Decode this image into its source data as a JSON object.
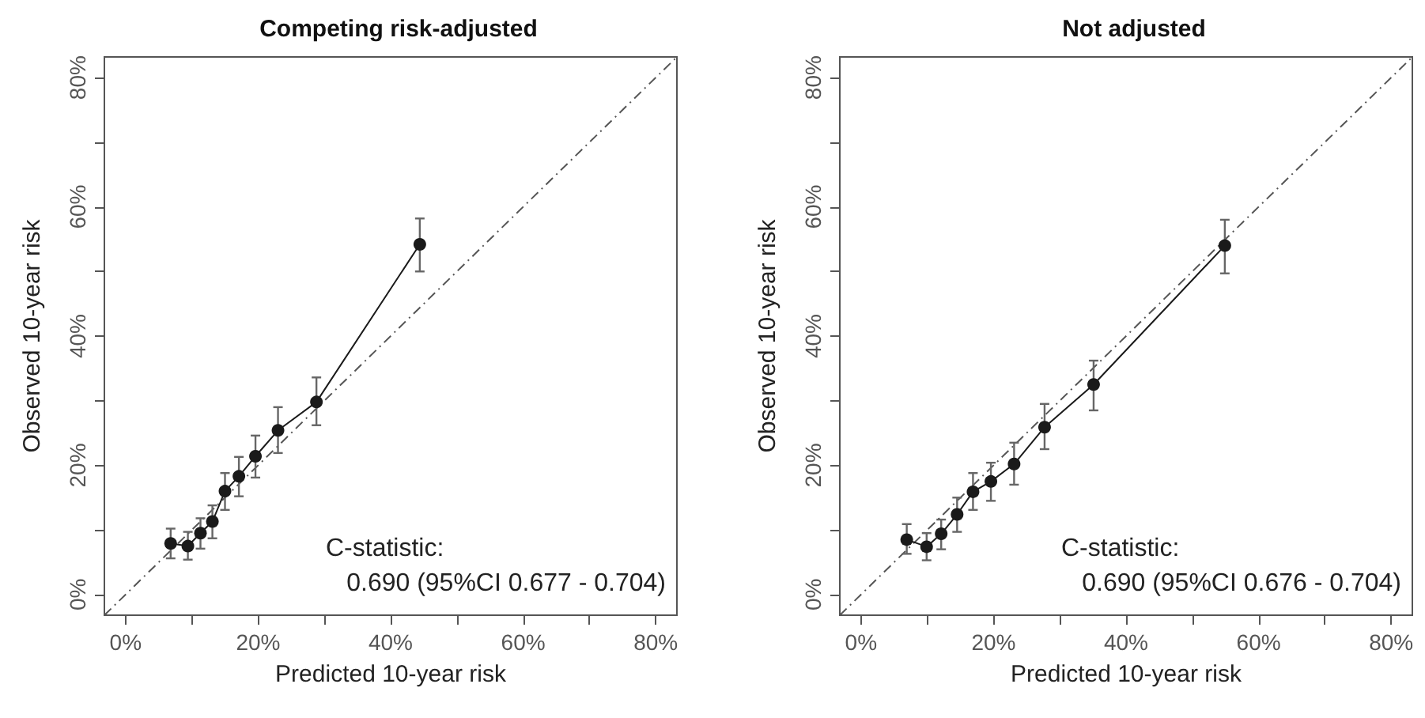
{
  "chart_data": [
    {
      "type": "line",
      "title": "Competing risk-adjusted",
      "xlabel": "Predicted 10-year risk",
      "ylabel": "Observed 10-year risk",
      "xlim": [
        -3.2,
        83.2
      ],
      "ylim": [
        -3.2,
        83.2
      ],
      "xticks": [
        {
          "value": 0,
          "label": "0%"
        },
        {
          "value": 10,
          "label": null
        },
        {
          "value": 20,
          "label": "20%"
        },
        {
          "value": 30,
          "label": null
        },
        {
          "value": 40,
          "label": "40%"
        },
        {
          "value": 50,
          "label": null
        },
        {
          "value": 60,
          "label": "60%"
        },
        {
          "value": 70,
          "label": null
        },
        {
          "value": 80,
          "label": "80%"
        }
      ],
      "yticks": [
        {
          "value": 0,
          "label": "0%"
        },
        {
          "value": 10,
          "label": null
        },
        {
          "value": 20,
          "label": "20%"
        },
        {
          "value": 30,
          "label": null
        },
        {
          "value": 40,
          "label": "40%"
        },
        {
          "value": 50,
          "label": null
        },
        {
          "value": 60,
          "label": "60%"
        },
        {
          "value": 70,
          "label": null
        },
        {
          "value": 80,
          "label": "80%"
        }
      ],
      "grid": false,
      "annotations": [
        "C-statistic:",
        "0.690 (95%CI 0.677 - 0.704)"
      ],
      "series": [
        {
          "color": "#1a1a1a",
          "marker": "circle",
          "line_style": "solid",
          "x": [
            6.8,
            9.4,
            11.3,
            13.1,
            15.0,
            17.1,
            19.6,
            23.0,
            28.8,
            44.4
          ],
          "values": [
            7.9,
            7.5,
            9.5,
            11.3,
            16.0,
            18.3,
            21.4,
            25.4,
            29.8,
            54.2
          ],
          "errors": [
            [
              5.6,
              10.2
            ],
            [
              5.4,
              9.7
            ],
            [
              7.1,
              11.8
            ],
            [
              8.7,
              13.8
            ],
            [
              13.1,
              18.8
            ],
            [
              15.2,
              21.3
            ],
            [
              18.1,
              24.6
            ],
            [
              21.9,
              29.0
            ],
            [
              26.2,
              33.6
            ],
            [
              50.0,
              58.2
            ]
          ]
        },
        {
          "color": "#555555",
          "marker": "none",
          "line_style": "dashed",
          "x": [
            -3.2,
            83.2
          ],
          "values": [
            -3.2,
            83.2
          ]
        }
      ]
    },
    {
      "type": "line",
      "title": "Not adjusted",
      "xlabel": "Predicted 10-year risk",
      "ylabel": "Observed 10-year risk",
      "xlim": [
        -3.2,
        83.2
      ],
      "ylim": [
        -3.2,
        83.2
      ],
      "xticks": [
        {
          "value": 0,
          "label": "0%"
        },
        {
          "value": 10,
          "label": null
        },
        {
          "value": 20,
          "label": "20%"
        },
        {
          "value": 30,
          "label": null
        },
        {
          "value": 40,
          "label": "40%"
        },
        {
          "value": 50,
          "label": null
        },
        {
          "value": 60,
          "label": "60%"
        },
        {
          "value": 70,
          "label": null
        },
        {
          "value": 80,
          "label": "80%"
        }
      ],
      "yticks": [
        {
          "value": 0,
          "label": "0%"
        },
        {
          "value": 10,
          "label": null
        },
        {
          "value": 20,
          "label": "20%"
        },
        {
          "value": 30,
          "label": null
        },
        {
          "value": 40,
          "label": "40%"
        },
        {
          "value": 50,
          "label": null
        },
        {
          "value": 60,
          "label": "60%"
        },
        {
          "value": 70,
          "label": null
        },
        {
          "value": 80,
          "label": "80%"
        }
      ],
      "grid": false,
      "annotations": [
        "C-statistic:",
        "0.690 (95%CI 0.676 - 0.704)"
      ],
      "series": [
        {
          "color": "#1a1a1a",
          "marker": "circle",
          "line_style": "solid",
          "x": [
            6.9,
            9.9,
            12.1,
            14.5,
            16.9,
            19.6,
            23.1,
            27.7,
            35.1,
            54.9
          ],
          "values": [
            8.5,
            7.4,
            9.4,
            12.4,
            15.9,
            17.5,
            20.2,
            25.9,
            32.5,
            54.0
          ],
          "errors": [
            [
              6.3,
              10.9
            ],
            [
              5.3,
              9.5
            ],
            [
              7.0,
              11.6
            ],
            [
              9.7,
              15.0
            ],
            [
              13.1,
              18.8
            ],
            [
              14.5,
              20.4
            ],
            [
              17.0,
              23.5
            ],
            [
              22.5,
              29.5
            ],
            [
              28.5,
              36.2
            ],
            [
              49.7,
              58.0
            ]
          ]
        },
        {
          "color": "#555555",
          "marker": "none",
          "line_style": "dashed",
          "x": [
            -3.2,
            83.2
          ],
          "values": [
            -3.2,
            83.2
          ]
        }
      ]
    }
  ]
}
